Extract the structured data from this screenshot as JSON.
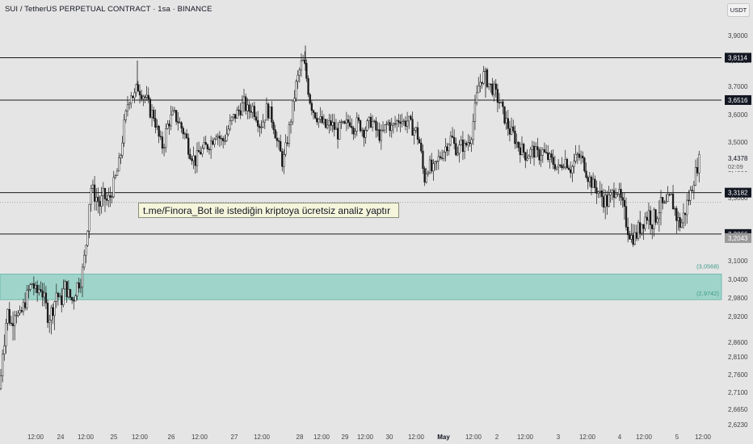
{
  "header": {
    "title": "SUI / TetherUS PERPETUAL CONTRACT · 1sa · BINANCE",
    "currency": "USDT"
  },
  "annotation": {
    "text": "t.me/Finora_Bot ile istediğin kriptoya ücretsiz analiz yaptır"
  },
  "chart_data": {
    "type": "candlestick",
    "ylim": [
      2.6,
      3.96
    ],
    "y_ticks": [
      "3,9000",
      "3,8000",
      "3,7000",
      "3,6000",
      "3,5000",
      "3,4000",
      "3,3000",
      "3,2000",
      "3,1000",
      "3,0400",
      "2,9800",
      "2,9200",
      "2,8600",
      "2,8100",
      "2,7600",
      "2,7100",
      "2,6650",
      "2,6230"
    ],
    "y_tick_values": [
      3.9,
      3.8,
      3.7,
      3.6,
      3.5,
      3.4,
      3.3,
      3.2,
      3.1,
      3.04,
      2.98,
      2.92,
      2.86,
      2.81,
      2.76,
      2.71,
      2.665,
      2.623
    ],
    "x_ticks": [
      "12:00",
      "24",
      "12:00",
      "25",
      "12:00",
      "26",
      "12:00",
      "27",
      "12:00",
      "28",
      "12:00",
      "29",
      "12:00",
      "30",
      "12:00",
      "May",
      "12:00",
      "2",
      "12:00",
      "3",
      "12:00",
      "4",
      "12:00",
      "5",
      "12:00"
    ],
    "x_tick_bold": [
      false,
      false,
      false,
      false,
      false,
      false,
      false,
      false,
      false,
      false,
      false,
      false,
      false,
      false,
      false,
      true,
      false,
      false,
      false,
      false,
      false,
      false,
      false,
      false,
      false
    ],
    "horizontal_levels": [
      {
        "value": 3.8114,
        "label": "3,8114"
      },
      {
        "value": 3.6516,
        "label": "3,6516"
      },
      {
        "value": 3.3182,
        "label": "3,3182"
      },
      {
        "value": 3.2066,
        "label": "3,2066"
      }
    ],
    "zone": {
      "top": 3.0568,
      "bottom": 2.9742,
      "top_label": "(3,0568)",
      "bottom_label": "(2,9742)",
      "color": "#9fd4ca"
    },
    "current_price": {
      "value": 3.4378,
      "label": "3,4378",
      "countdown": "02:09"
    },
    "dotted_level": 3.289,
    "extra_price_label": {
      "value": 3.2043,
      "label": "3,2043"
    },
    "price_path": [
      [
        0,
        2.72
      ],
      [
        3,
        2.83
      ],
      [
        6,
        2.88
      ],
      [
        9,
        2.94
      ],
      [
        14,
        2.9
      ],
      [
        19,
        2.95
      ],
      [
        24,
        2.91
      ],
      [
        30,
        2.96
      ],
      [
        35,
        3.0
      ],
      [
        40,
        3.03
      ],
      [
        45,
        2.99
      ],
      [
        50,
        3.02
      ],
      [
        55,
        2.97
      ],
      [
        60,
        2.92
      ],
      [
        66,
        2.95
      ],
      [
        70,
        3.0
      ],
      [
        75,
        2.96
      ],
      [
        80,
        3.02
      ],
      [
        85,
        2.99
      ],
      [
        90,
        2.97
      ],
      [
        95,
        3.02
      ],
      [
        100,
        3.04
      ],
      [
        103,
        3.08
      ],
      [
        106,
        3.16
      ],
      [
        108,
        3.22
      ],
      [
        110,
        3.28
      ],
      [
        113,
        3.34
      ],
      [
        117,
        3.31
      ],
      [
        120,
        3.3
      ],
      [
        124,
        3.28
      ],
      [
        128,
        3.31
      ],
      [
        132,
        3.29
      ],
      [
        136,
        3.3
      ],
      [
        140,
        3.34
      ],
      [
        144,
        3.38
      ],
      [
        148,
        3.43
      ],
      [
        150,
        3.47
      ],
      [
        153,
        3.55
      ],
      [
        156,
        3.6
      ],
      [
        158,
        3.64
      ],
      [
        162,
        3.68
      ],
      [
        166,
        3.66
      ],
      [
        170,
        3.7
      ],
      [
        175,
        3.68
      ],
      [
        180,
        3.66
      ],
      [
        183,
        3.64
      ],
      [
        186,
        3.61
      ],
      [
        190,
        3.6
      ],
      [
        194,
        3.55
      ],
      [
        198,
        3.5
      ],
      [
        202,
        3.48
      ],
      [
        206,
        3.55
      ],
      [
        210,
        3.58
      ],
      [
        215,
        3.6
      ],
      [
        220,
        3.58
      ],
      [
        225,
        3.55
      ],
      [
        230,
        3.52
      ],
      [
        234,
        3.47
      ],
      [
        238,
        3.45
      ],
      [
        242,
        3.43
      ],
      [
        246,
        3.46
      ],
      [
        250,
        3.47
      ],
      [
        254,
        3.48
      ],
      [
        258,
        3.49
      ],
      [
        263,
        3.51
      ],
      [
        267,
        3.54
      ],
      [
        271,
        3.52
      ],
      [
        275,
        3.5
      ],
      [
        279,
        3.52
      ],
      [
        283,
        3.55
      ],
      [
        287,
        3.58
      ],
      [
        292,
        3.6
      ],
      [
        297,
        3.62
      ],
      [
        302,
        3.64
      ],
      [
        307,
        3.61
      ],
      [
        312,
        3.63
      ],
      [
        317,
        3.6
      ],
      [
        322,
        3.56
      ],
      [
        326,
        3.58
      ],
      [
        330,
        3.62
      ],
      [
        335,
        3.6
      ],
      [
        339,
        3.56
      ],
      [
        343,
        3.5
      ],
      [
        347,
        3.46
      ],
      [
        350,
        3.42
      ],
      [
        354,
        3.48
      ],
      [
        358,
        3.55
      ],
      [
        362,
        3.62
      ],
      [
        366,
        3.7
      ],
      [
        370,
        3.75
      ],
      [
        374,
        3.8
      ],
      [
        377,
        3.78
      ],
      [
        380,
        3.72
      ],
      [
        383,
        3.66
      ],
      [
        387,
        3.62
      ],
      [
        391,
        3.6
      ],
      [
        395,
        3.58
      ],
      [
        399,
        3.57
      ],
      [
        404,
        3.55
      ],
      [
        409,
        3.57
      ],
      [
        414,
        3.55
      ],
      [
        418,
        3.53
      ],
      [
        422,
        3.56
      ],
      [
        426,
        3.55
      ],
      [
        430,
        3.57
      ],
      [
        434,
        3.58
      ],
      [
        438,
        3.55
      ],
      [
        442,
        3.57
      ],
      [
        446,
        3.56
      ],
      [
        450,
        3.54
      ],
      [
        455,
        3.56
      ],
      [
        460,
        3.58
      ],
      [
        464,
        3.55
      ],
      [
        468,
        3.53
      ],
      [
        472,
        3.52
      ],
      [
        476,
        3.55
      ],
      [
        480,
        3.57
      ],
      [
        485,
        3.55
      ],
      [
        490,
        3.57
      ],
      [
        495,
        3.59
      ],
      [
        500,
        3.57
      ],
      [
        505,
        3.58
      ],
      [
        510,
        3.55
      ],
      [
        515,
        3.54
      ],
      [
        519,
        3.5
      ],
      [
        522,
        3.44
      ],
      [
        525,
        3.36
      ],
      [
        528,
        3.4
      ],
      [
        531,
        3.42
      ],
      [
        535,
        3.39
      ],
      [
        539,
        3.41
      ],
      [
        543,
        3.44
      ],
      [
        547,
        3.46
      ],
      [
        551,
        3.48
      ],
      [
        555,
        3.5
      ],
      [
        559,
        3.52
      ],
      [
        563,
        3.48
      ],
      [
        567,
        3.47
      ],
      [
        571,
        3.49
      ],
      [
        575,
        3.48
      ],
      [
        579,
        3.5
      ],
      [
        583,
        3.52
      ],
      [
        586,
        3.58
      ],
      [
        589,
        3.64
      ],
      [
        592,
        3.7
      ],
      [
        596,
        3.73
      ],
      [
        600,
        3.75
      ],
      [
        603,
        3.72
      ],
      [
        607,
        3.7
      ],
      [
        611,
        3.69
      ],
      [
        615,
        3.66
      ],
      [
        619,
        3.64
      ],
      [
        623,
        3.6
      ],
      [
        627,
        3.57
      ],
      [
        631,
        3.54
      ],
      [
        635,
        3.53
      ],
      [
        639,
        3.5
      ],
      [
        643,
        3.48
      ],
      [
        647,
        3.47
      ],
      [
        651,
        3.45
      ],
      [
        655,
        3.46
      ],
      [
        659,
        3.47
      ],
      [
        663,
        3.46
      ],
      [
        667,
        3.45
      ],
      [
        671,
        3.47
      ],
      [
        675,
        3.45
      ],
      [
        679,
        3.44
      ],
      [
        683,
        3.43
      ],
      [
        687,
        3.42
      ],
      [
        691,
        3.4
      ],
      [
        695,
        3.42
      ],
      [
        699,
        3.44
      ],
      [
        703,
        3.42
      ],
      [
        707,
        3.4
      ],
      [
        711,
        3.43
      ],
      [
        715,
        3.45
      ],
      [
        719,
        3.44
      ],
      [
        723,
        3.42
      ],
      [
        727,
        3.38
      ],
      [
        731,
        3.36
      ],
      [
        735,
        3.34
      ],
      [
        739,
        3.33
      ],
      [
        743,
        3.31
      ],
      [
        747,
        3.3
      ],
      [
        751,
        3.29
      ],
      [
        755,
        3.3
      ],
      [
        759,
        3.32
      ],
      [
        763,
        3.34
      ],
      [
        767,
        3.3
      ],
      [
        771,
        3.27
      ],
      [
        775,
        3.24
      ],
      [
        779,
        3.21
      ],
      [
        783,
        3.19
      ],
      [
        787,
        3.2
      ],
      [
        791,
        3.22
      ],
      [
        795,
        3.24
      ],
      [
        799,
        3.25
      ],
      [
        803,
        3.26
      ],
      [
        807,
        3.24
      ],
      [
        811,
        3.25
      ],
      [
        815,
        3.27
      ],
      [
        819,
        3.28
      ],
      [
        823,
        3.27
      ],
      [
        827,
        3.29
      ],
      [
        831,
        3.3
      ],
      [
        835,
        3.27
      ],
      [
        839,
        3.24
      ],
      [
        843,
        3.23
      ],
      [
        847,
        3.26
      ],
      [
        851,
        3.29
      ],
      [
        855,
        3.32
      ],
      [
        858,
        3.36
      ],
      [
        861,
        3.39
      ],
      [
        864,
        3.42
      ],
      [
        866,
        3.44
      ]
    ]
  }
}
